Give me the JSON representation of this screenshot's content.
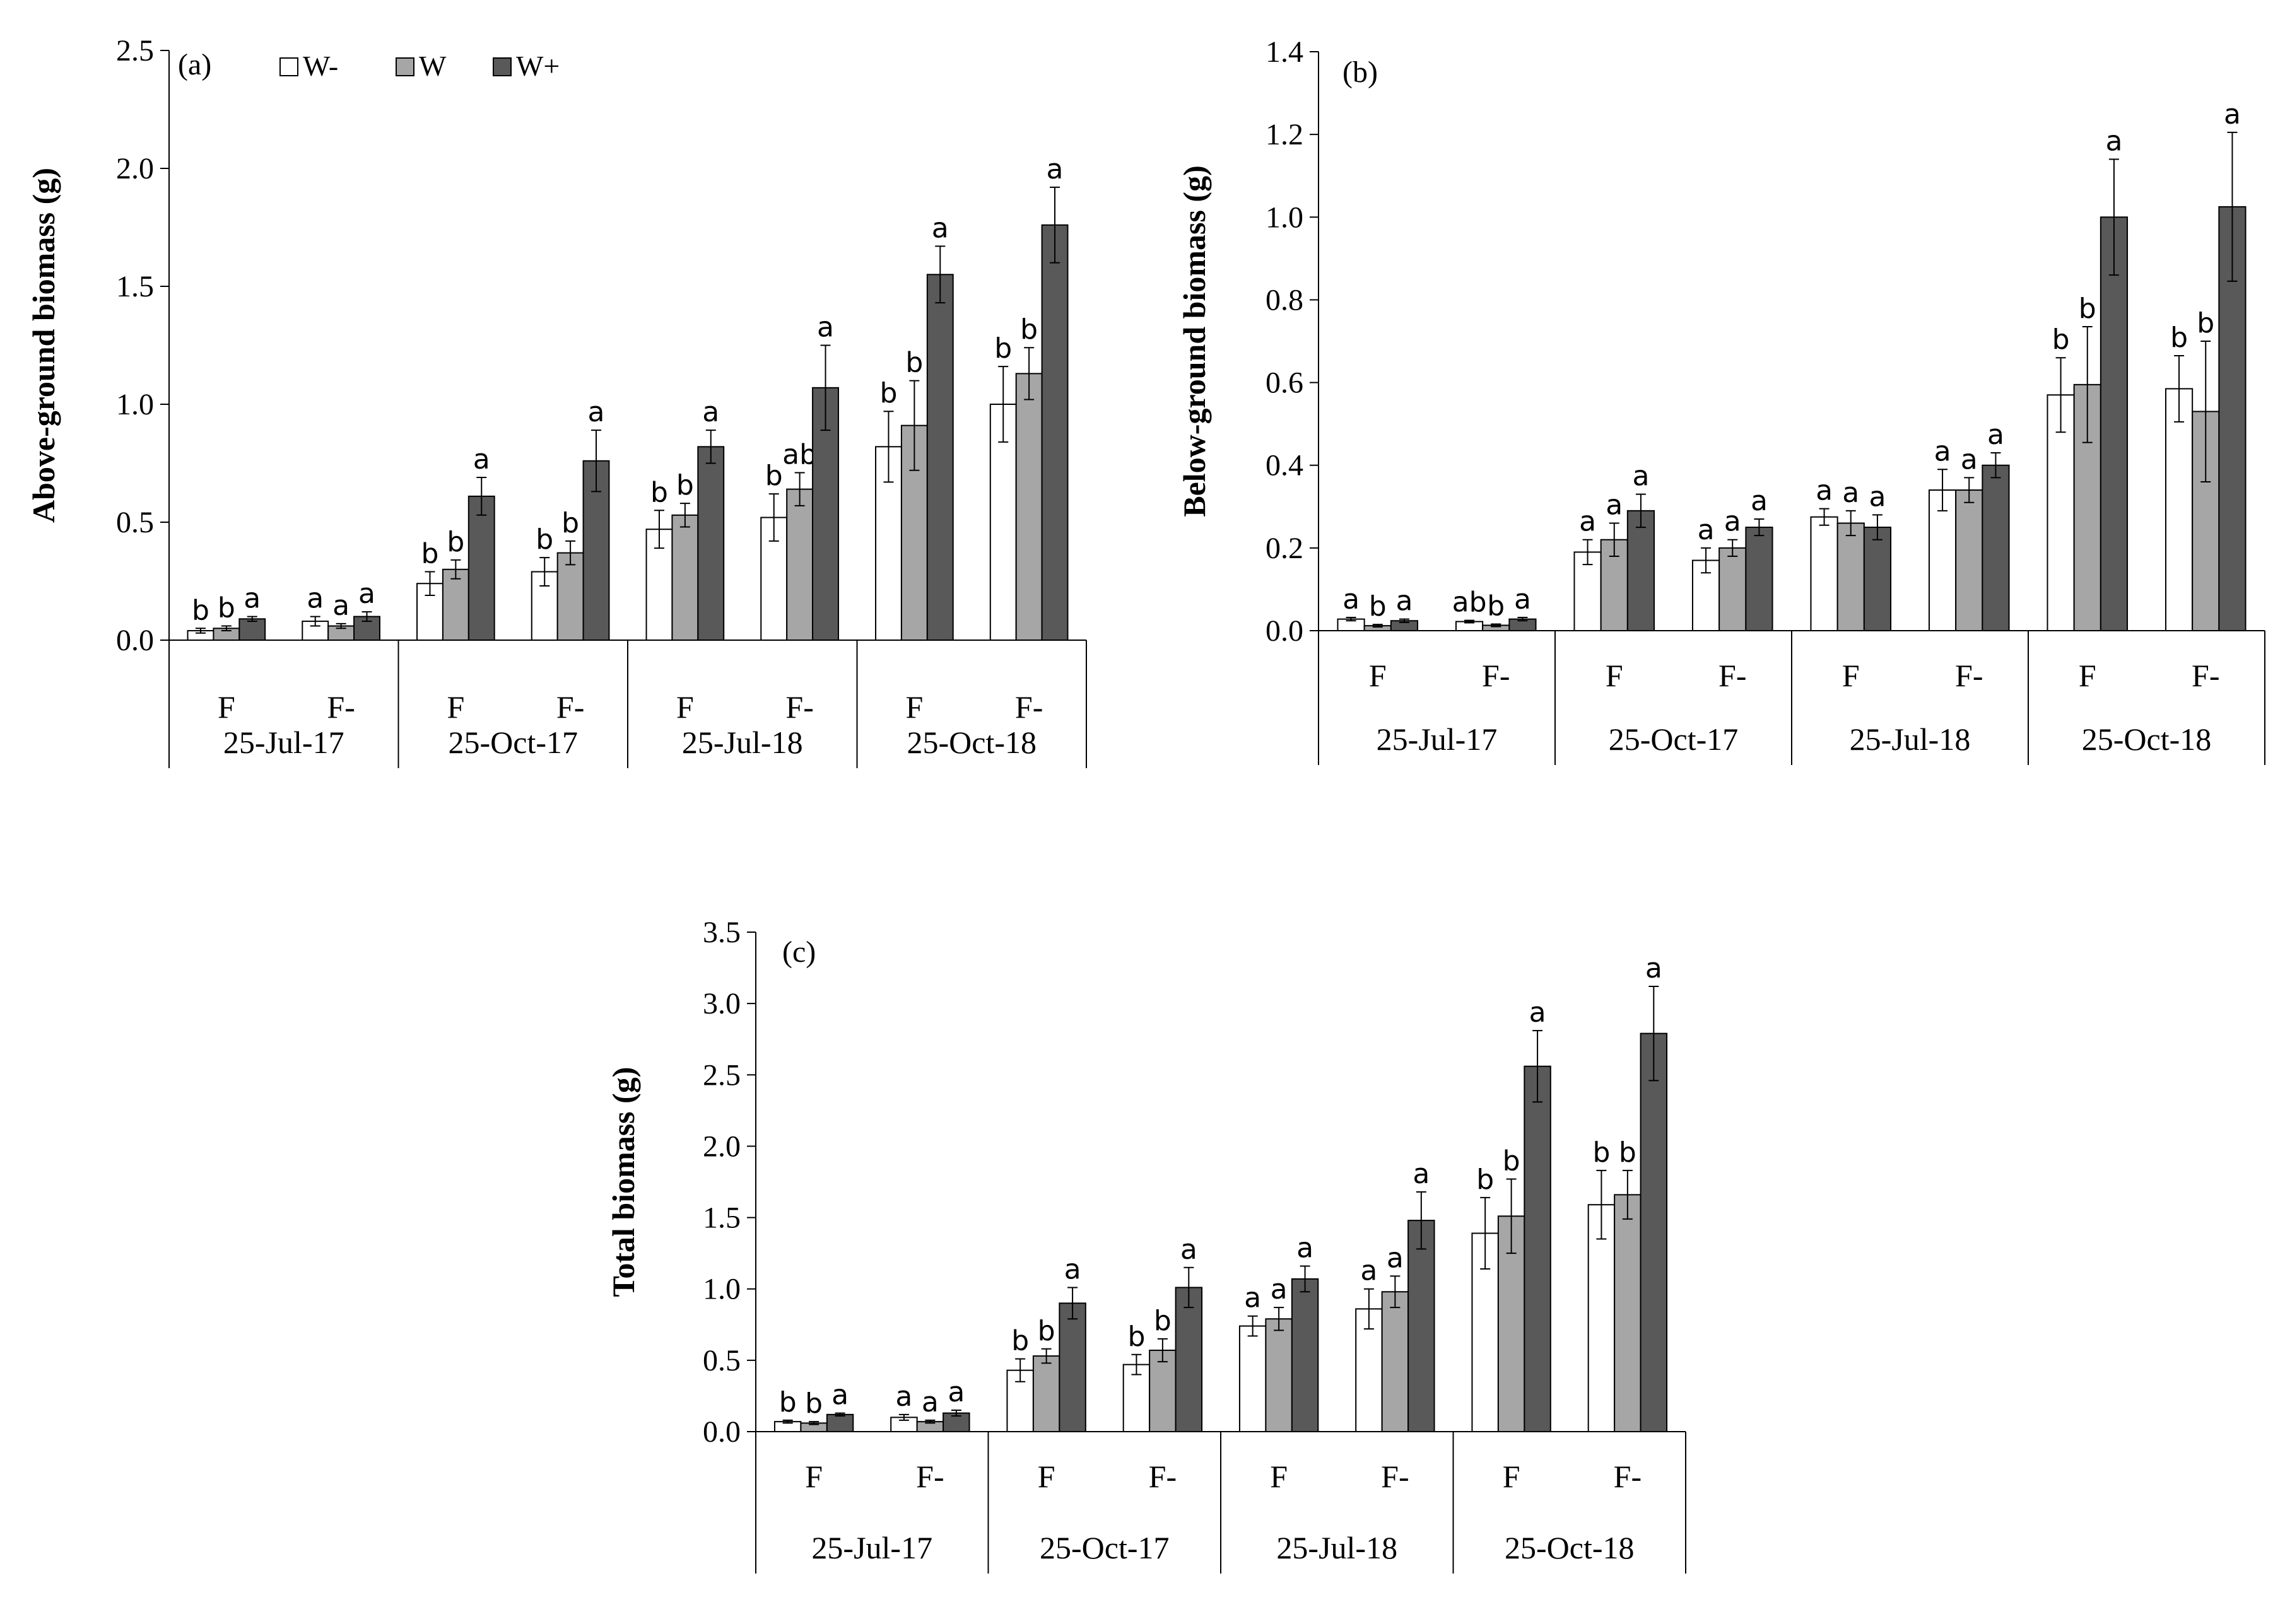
{
  "legend": [
    {
      "name": "W-",
      "color": "#ffffff"
    },
    {
      "name": "W",
      "color": "#a6a6a6"
    },
    {
      "name": "W+",
      "color": "#595959"
    }
  ],
  "chart_data": [
    {
      "type": "bar",
      "panel_label": "(a)",
      "ylabel": "Above-ground biomass (g)",
      "ylim": [
        0,
        2.5
      ],
      "yticks": [
        "0.0",
        "0.5",
        "1.0",
        "1.5",
        "2.0",
        "2.5"
      ],
      "categories": [
        "F",
        "F-",
        "F",
        "F-",
        "F",
        "F-",
        "F",
        "F-"
      ],
      "groups": [
        "25-Jul-17",
        "25-Oct-17",
        "25-Jul-18",
        "25-Oct-18"
      ],
      "series": [
        {
          "name": "W-",
          "values": [
            0.04,
            0.08,
            0.24,
            0.29,
            0.47,
            0.52,
            0.82,
            1.0
          ],
          "errors": [
            0.01,
            0.02,
            0.05,
            0.06,
            0.08,
            0.1,
            0.15,
            0.16
          ],
          "letters": [
            "b",
            "a",
            "b",
            "b",
            "b",
            "b",
            "b",
            "b"
          ]
        },
        {
          "name": "W",
          "values": [
            0.05,
            0.06,
            0.3,
            0.37,
            0.53,
            0.64,
            0.91,
            1.13
          ],
          "errors": [
            0.01,
            0.01,
            0.04,
            0.05,
            0.05,
            0.07,
            0.19,
            0.11
          ],
          "letters": [
            "b",
            "a",
            "b",
            "b",
            "b",
            "ab",
            "b",
            "b"
          ]
        },
        {
          "name": "W+",
          "values": [
            0.09,
            0.1,
            0.61,
            0.76,
            0.82,
            1.07,
            1.55,
            1.76
          ],
          "errors": [
            0.01,
            0.02,
            0.08,
            0.13,
            0.07,
            0.18,
            0.12,
            0.16
          ],
          "letters": [
            "a",
            "a",
            "a",
            "a",
            "a",
            "a",
            "a",
            "a"
          ]
        }
      ]
    },
    {
      "type": "bar",
      "panel_label": "(b)",
      "ylabel": "Below-ground biomass (g)",
      "ylim": [
        0,
        1.4
      ],
      "yticks": [
        "0.0",
        "0.2",
        "0.4",
        "0.6",
        "0.8",
        "1.0",
        "1.2",
        "1.4"
      ],
      "categories": [
        "F",
        "F-",
        "F",
        "F-",
        "F",
        "F-",
        "F",
        "F-"
      ],
      "groups": [
        "25-Jul-17",
        "25-Oct-17",
        "25-Jul-18",
        "25-Oct-18"
      ],
      "series": [
        {
          "name": "W-",
          "values": [
            0.028,
            0.022,
            0.19,
            0.17,
            0.275,
            0.34,
            0.57,
            0.585
          ],
          "errors": [
            0.004,
            0.003,
            0.03,
            0.03,
            0.02,
            0.05,
            0.09,
            0.08
          ],
          "letters": [
            "a",
            "ab",
            "a",
            "a",
            "a",
            "a",
            "b",
            "b"
          ]
        },
        {
          "name": "W",
          "values": [
            0.012,
            0.013,
            0.22,
            0.2,
            0.26,
            0.34,
            0.595,
            0.53
          ],
          "errors": [
            0.003,
            0.003,
            0.04,
            0.02,
            0.03,
            0.03,
            0.14,
            0.17
          ],
          "letters": [
            "b",
            "b",
            "a",
            "a",
            "a",
            "a",
            "b",
            "b"
          ]
        },
        {
          "name": "W+",
          "values": [
            0.024,
            0.028,
            0.29,
            0.25,
            0.25,
            0.4,
            1.0,
            1.025
          ],
          "errors": [
            0.004,
            0.004,
            0.04,
            0.02,
            0.03,
            0.03,
            0.14,
            0.18
          ],
          "letters": [
            "a",
            "a",
            "a",
            "a",
            "a",
            "a",
            "a",
            "a"
          ]
        }
      ]
    },
    {
      "type": "bar",
      "panel_label": "(c)",
      "ylabel": "Total biomass (g)",
      "ylim": [
        0,
        3.5
      ],
      "yticks": [
        "0.0",
        "0.5",
        "1.0",
        "1.5",
        "2.0",
        "2.5",
        "3.0",
        "3.5"
      ],
      "categories": [
        "F",
        "F-",
        "F",
        "F-",
        "F",
        "F-",
        "F",
        "F-"
      ],
      "groups": [
        "25-Jul-17",
        "25-Oct-17",
        "25-Jul-18",
        "25-Oct-18"
      ],
      "series": [
        {
          "name": "W-",
          "values": [
            0.07,
            0.1,
            0.43,
            0.47,
            0.74,
            0.86,
            1.39,
            1.59
          ],
          "errors": [
            0.01,
            0.02,
            0.08,
            0.07,
            0.07,
            0.14,
            0.25,
            0.24
          ],
          "letters": [
            "b",
            "a",
            "b",
            "b",
            "a",
            "a",
            "b",
            "b"
          ]
        },
        {
          "name": "W",
          "values": [
            0.06,
            0.07,
            0.53,
            0.57,
            0.79,
            0.98,
            1.51,
            1.66
          ],
          "errors": [
            0.01,
            0.01,
            0.05,
            0.08,
            0.08,
            0.11,
            0.26,
            0.17
          ],
          "letters": [
            "b",
            "a",
            "b",
            "b",
            "a",
            "a",
            "b",
            "b"
          ]
        },
        {
          "name": "W+",
          "values": [
            0.12,
            0.13,
            0.9,
            1.01,
            1.07,
            1.48,
            2.56,
            2.79
          ],
          "errors": [
            0.01,
            0.02,
            0.11,
            0.14,
            0.09,
            0.2,
            0.25,
            0.33
          ],
          "letters": [
            "a",
            "a",
            "a",
            "a",
            "a",
            "a",
            "a",
            "a"
          ]
        }
      ]
    }
  ]
}
